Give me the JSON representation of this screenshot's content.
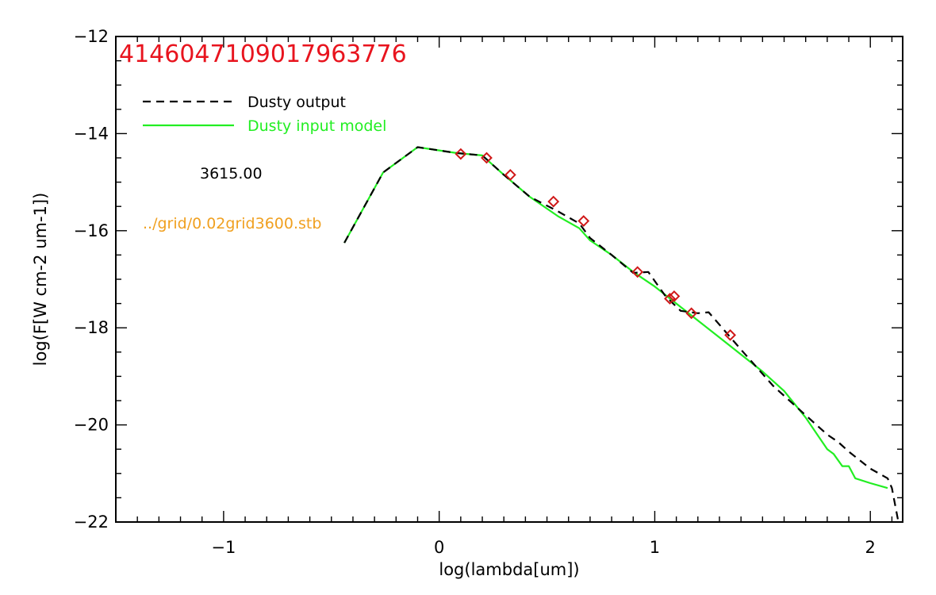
{
  "chart_data": {
    "type": "line",
    "title": "414604710901796 3776",
    "title_text": "4146047109017963776",
    "xlabel": "log(lambda[um])",
    "ylabel": "log(F[W cm-2 um-1])",
    "xlim": [
      -1.5,
      2.15
    ],
    "ylim": [
      -22,
      -12
    ],
    "x_ticks": [
      -1,
      0,
      1,
      2
    ],
    "y_ticks": [
      -22,
      -20,
      -18,
      -16,
      -14,
      -12
    ],
    "x_minor_step": 0.1,
    "y_minor_step": 0.5,
    "grid": false,
    "legend_position": "top-left",
    "annotations": {
      "temperature": "3615.00",
      "grid_file": "../grid/0.02grid3600.stb"
    },
    "colors": {
      "title": "#e8141e",
      "grid_file": "#f0a020",
      "dusty_output": "#000000",
      "dusty_input": "#22ee22",
      "photometry": "#d01818",
      "axes": "#000000"
    },
    "series": [
      {
        "name": "Dusty output",
        "style": "dashed",
        "x": [
          -0.44,
          -0.26,
          -0.1,
          0.08,
          0.2,
          0.3,
          0.42,
          0.55,
          0.65,
          0.7,
          0.8,
          0.9,
          0.97,
          1.01,
          1.05,
          1.12,
          1.2,
          1.25,
          1.4,
          1.55,
          1.7,
          1.8,
          1.85,
          1.9,
          2.0,
          2.08,
          2.1,
          2.13
        ],
        "y": [
          -16.25,
          -14.8,
          -14.28,
          -14.4,
          -14.45,
          -14.85,
          -15.3,
          -15.6,
          -15.85,
          -16.15,
          -16.5,
          -16.87,
          -16.85,
          -17.1,
          -17.35,
          -17.65,
          -17.7,
          -17.68,
          -18.45,
          -19.2,
          -19.8,
          -20.2,
          -20.35,
          -20.55,
          -20.9,
          -21.1,
          -21.3,
          -22.0
        ]
      },
      {
        "name": "Dusty input model",
        "style": "solid",
        "x": [
          -0.44,
          -0.26,
          -0.1,
          0.08,
          0.2,
          0.3,
          0.42,
          0.55,
          0.65,
          0.7,
          0.8,
          0.9,
          1.0,
          1.1,
          1.2,
          1.3,
          1.4,
          1.5,
          1.6,
          1.7,
          1.8,
          1.83,
          1.87,
          1.9,
          1.93,
          2.0,
          2.08
        ],
        "y": [
          -16.25,
          -14.8,
          -14.28,
          -14.4,
          -14.45,
          -14.85,
          -15.3,
          -15.7,
          -15.95,
          -16.2,
          -16.5,
          -16.85,
          -17.15,
          -17.5,
          -17.85,
          -18.2,
          -18.55,
          -18.9,
          -19.3,
          -19.85,
          -20.5,
          -20.6,
          -20.85,
          -20.85,
          -21.1,
          -21.2,
          -21.3
        ]
      }
    ],
    "points": {
      "name": "photometry",
      "marker": "diamond",
      "x": [
        0.1,
        0.22,
        0.33,
        0.53,
        0.67,
        0.92,
        1.07,
        1.09,
        1.17,
        1.35
      ],
      "y": [
        -14.42,
        -14.5,
        -14.85,
        -15.4,
        -15.8,
        -16.85,
        -17.4,
        -17.35,
        -17.7,
        -18.15
      ]
    }
  }
}
